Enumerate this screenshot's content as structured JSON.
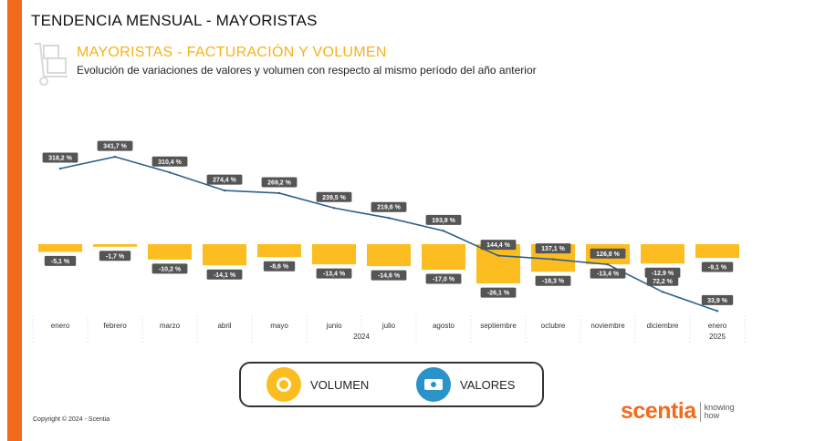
{
  "page": {
    "title": "TENDENCIA MENSUAL - MAYORISTAS",
    "chart_title": "MAYORISTAS - FACTURACIÓN Y VOLUMEN",
    "chart_subtitle": "Evolución de variaciones de valores y volumen con respecto al mismo período del año anterior",
    "copyright": "Copyright © 2024 - Scentia"
  },
  "brand": {
    "name": "scentia",
    "tagline_1": "knowing",
    "tagline_2": "how"
  },
  "legend": {
    "volumen": "VOLUMEN",
    "valores": "VALORES"
  },
  "colors": {
    "accent_orange": "#f26a1b",
    "bar_yellow": "#fbbd1f",
    "line_blue": "#2f5f8a",
    "label_bg": "#555555",
    "icon_blue": "#2a93c9"
  },
  "chart_data": {
    "type": "bar-line combo",
    "title": "MAYORISTAS - FACTURACIÓN Y VOLUMEN",
    "categories": [
      "enero",
      "febrero",
      "marzo",
      "abril",
      "mayo",
      "junio",
      "julio",
      "agosto",
      "septiembre",
      "octubre",
      "noviembre",
      "diciembre",
      "enero"
    ],
    "year_labels": [
      "2024",
      "2025"
    ],
    "series": [
      {
        "name": "VALORES",
        "type": "line",
        "values": [
          318.2,
          341.7,
          310.4,
          274.4,
          269.2,
          239.5,
          219.6,
          193.9,
          144.4,
          137.1,
          126.8,
          72.2,
          33.9
        ],
        "labels": [
          "318,2 %",
          "341,7 %",
          "310,4 %",
          "274,4 %",
          "269,2 %",
          "239,5 %",
          "219,6 %",
          "193,9 %",
          "144,4 %",
          "137,1 %",
          "126,8 %",
          "72,2 %",
          "33,9 %"
        ]
      },
      {
        "name": "VOLUMEN",
        "type": "bar",
        "values": [
          -5.1,
          -1.7,
          -10.2,
          -14.1,
          -8.6,
          -13.4,
          -14.6,
          -17.0,
          -26.1,
          -18.3,
          -13.4,
          -12.9,
          -9.1
        ],
        "labels": [
          "-5,1 %",
          "-1,7 %",
          "-10,2 %",
          "-14,1 %",
          "-8,6 %",
          "-13,4 %",
          "-14,6 %",
          "-17,0 %",
          "-26,1 %",
          "-18,3 %",
          "-13,4 %",
          "-12,9 %",
          "-9,1 %"
        ]
      }
    ]
  }
}
